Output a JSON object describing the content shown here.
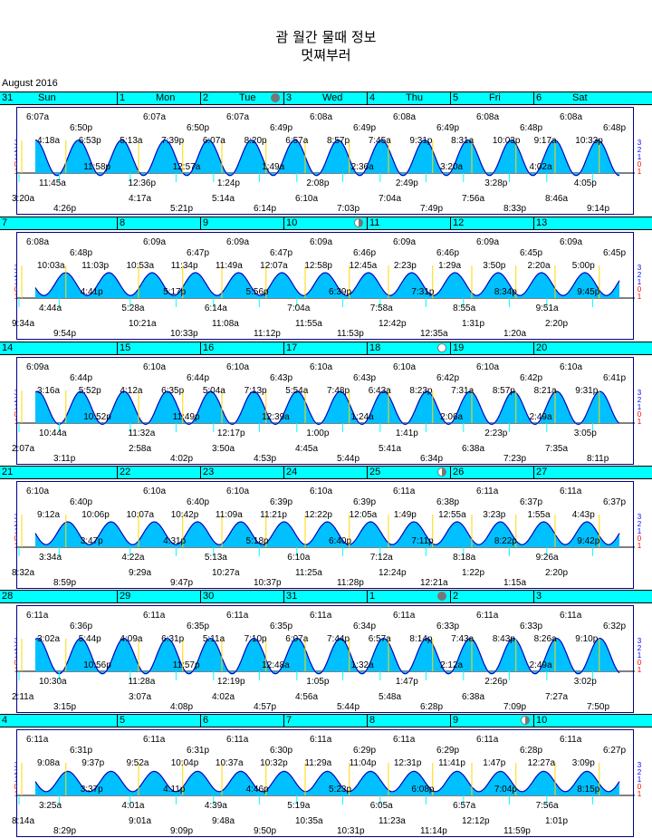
{
  "title": {
    "line1": "괌 월간 물때 정보",
    "line2": "멋쪄부러"
  },
  "month_label": "August 2016",
  "colors": {
    "header_bg": "#00ffff",
    "wave_fill": "#00c0ff",
    "wave_line": "#0000c0",
    "frame": "#00008b",
    "moonrise": "#ffd700",
    "moonset": "#00ffff"
  },
  "y_scale_labels": [
    "3",
    "2",
    "1",
    "0",
    "1"
  ],
  "weeks": [
    {
      "days": [
        {
          "num": "31",
          "name": "Sun",
          "moon": ""
        },
        {
          "num": "1",
          "name": "Mon",
          "moon": ""
        },
        {
          "num": "2",
          "name": "Tue",
          "moon": "new"
        },
        {
          "num": "3",
          "name": "Wed",
          "moon": ""
        },
        {
          "num": "4",
          "name": "Thu",
          "moon": ""
        },
        {
          "num": "5",
          "name": "Fri",
          "moon": ""
        },
        {
          "num": "6",
          "name": "Sat",
          "moon": ""
        }
      ],
      "sun": [
        [
          "6:07a",
          "6:50p"
        ],
        [
          "6:07a",
          "6:50p"
        ],
        [
          "6:07a",
          "6:49p"
        ],
        [
          "6:08a",
          "6:49p"
        ],
        [
          "6:08a",
          "6:49p"
        ],
        [
          "6:08a",
          "6:48p"
        ],
        [
          "6:08a",
          "6:48p"
        ]
      ],
      "highs": [
        "4:18a",
        "6:53p",
        "5:13a",
        "7:39p",
        "6:07a",
        "8:20p",
        "6:57a",
        "8:57p",
        "7:45a",
        "9:31p",
        "8:31a",
        "10:03p",
        "9:17a",
        "10:33p"
      ],
      "lows": [
        "11:45a",
        "11:58p",
        "12:36p",
        "12:57a",
        "1:24p",
        "1:49a",
        "2:08p",
        "2:36a",
        "2:49p",
        "3:20a",
        "3:28p",
        "4:02a",
        "4:05p"
      ],
      "moon": [
        [
          "3:20a",
          "4:26p"
        ],
        [
          "4:17a",
          "5:21p"
        ],
        [
          "5:14a",
          "6:14p"
        ],
        [
          "6:10a",
          "7:03p"
        ],
        [
          "7:04a",
          "7:49p"
        ],
        [
          "7:56a",
          "8:33p"
        ],
        [
          "8:46a",
          "9:14p"
        ]
      ],
      "tide_max": 2.6,
      "tide_min": -0.2,
      "phase": 0.25
    },
    {
      "days": [
        {
          "num": "7",
          "name": "",
          "moon": ""
        },
        {
          "num": "8",
          "name": "",
          "moon": ""
        },
        {
          "num": "9",
          "name": "",
          "moon": ""
        },
        {
          "num": "10",
          "name": "",
          "moon": "half"
        },
        {
          "num": "11",
          "name": "",
          "moon": ""
        },
        {
          "num": "12",
          "name": "",
          "moon": ""
        },
        {
          "num": "13",
          "name": "",
          "moon": ""
        }
      ],
      "sun": [
        [
          "6:08a",
          "6:48p"
        ],
        [
          "6:09a",
          "6:47p"
        ],
        [
          "6:09a",
          "6:47p"
        ],
        [
          "6:09a",
          "6:46p"
        ],
        [
          "6:09a",
          "6:46p"
        ],
        [
          "6:09a",
          "6:45p"
        ],
        [
          "6:09a",
          "6:45p"
        ]
      ],
      "highs": [
        "10:03a",
        "11:03p",
        "10:53a",
        "11:34p",
        "11:49a",
        "12:07a",
        "12:58p",
        "12:45a",
        "2:23p",
        "1:29a",
        "3:50p",
        "2:20a",
        "5:00p"
      ],
      "lows": [
        "4:44a",
        "4:41p",
        "5:28a",
        "5:17p",
        "6:14a",
        "5:56p",
        "7:04a",
        "6:39p",
        "7:58a",
        "7:31p",
        "8:55a",
        "8:34p",
        "9:51a",
        "9:45p"
      ],
      "moon": [
        [
          "9:34a",
          "9:54p"
        ],
        [
          "10:21a",
          "10:33p"
        ],
        [
          "11:08a",
          "11:12p"
        ],
        [
          "11:55a",
          "11:53p"
        ],
        [
          "12:42p",
          "12:35a"
        ],
        [
          "1:31p",
          "1:20a"
        ],
        [
          "2:20p",
          ""
        ]
      ],
      "tide_max": 2.0,
      "tide_min": 0.2,
      "phase": 0.55
    },
    {
      "days": [
        {
          "num": "14",
          "name": "",
          "moon": ""
        },
        {
          "num": "15",
          "name": "",
          "moon": ""
        },
        {
          "num": "16",
          "name": "",
          "moon": ""
        },
        {
          "num": "17",
          "name": "",
          "moon": ""
        },
        {
          "num": "18",
          "name": "",
          "moon": "full"
        },
        {
          "num": "19",
          "name": "",
          "moon": ""
        },
        {
          "num": "20",
          "name": "",
          "moon": ""
        }
      ],
      "sun": [
        [
          "6:09a",
          "6:44p"
        ],
        [
          "6:10a",
          "6:44p"
        ],
        [
          "6:10a",
          "6:43p"
        ],
        [
          "6:10a",
          "6:43p"
        ],
        [
          "6:10a",
          "6:42p"
        ],
        [
          "6:10a",
          "6:42p"
        ],
        [
          "6:10a",
          "6:41p"
        ]
      ],
      "highs": [
        "3:16a",
        "5:52p",
        "4:12a",
        "6:35p",
        "5:04a",
        "7:13p",
        "5:54a",
        "7:48p",
        "6:43a",
        "8:23p",
        "7:31a",
        "8:57p",
        "8:21a",
        "9:31p"
      ],
      "lows": [
        "10:44a",
        "10:52p",
        "11:32a",
        "11:49p",
        "12:17p",
        "12:39a",
        "1:00p",
        "1:24a",
        "1:41p",
        "2:06a",
        "2:23p",
        "2:49a",
        "3:05p"
      ],
      "moon": [
        [
          "2:07a",
          "3:11p"
        ],
        [
          "2:58a",
          "4:02p"
        ],
        [
          "3:50a",
          "4:53p"
        ],
        [
          "4:45a",
          "5:44p"
        ],
        [
          "5:41a",
          "6:34p"
        ],
        [
          "6:38a",
          "7:23p"
        ],
        [
          "7:35a",
          "8:11p"
        ]
      ],
      "tide_max": 2.5,
      "tide_min": -0.1,
      "phase": 0.2
    },
    {
      "days": [
        {
          "num": "21",
          "name": "",
          "moon": ""
        },
        {
          "num": "22",
          "name": "",
          "moon": ""
        },
        {
          "num": "23",
          "name": "",
          "moon": ""
        },
        {
          "num": "24",
          "name": "",
          "moon": ""
        },
        {
          "num": "25",
          "name": "",
          "moon": "half"
        },
        {
          "num": "26",
          "name": "",
          "moon": ""
        },
        {
          "num": "27",
          "name": "",
          "moon": ""
        }
      ],
      "sun": [
        [
          "6:10a",
          "6:40p"
        ],
        [
          "6:10a",
          "6:40p"
        ],
        [
          "6:10a",
          "6:39p"
        ],
        [
          "6:10a",
          "6:39p"
        ],
        [
          "6:11a",
          "6:38p"
        ],
        [
          "6:11a",
          "6:37p"
        ],
        [
          "6:11a",
          "6:37p"
        ]
      ],
      "highs": [
        "9:12a",
        "10:06p",
        "10:07a",
        "10:42p",
        "11:09a",
        "11:21p",
        "12:22p",
        "12:05a",
        "1:49p",
        "12:55a",
        "3:23p",
        "1:55a",
        "4:43p"
      ],
      "lows": [
        "3:34a",
        "3:47p",
        "4:22a",
        "4:31p",
        "5:13a",
        "5:18p",
        "6:10a",
        "6:40p",
        "7:12a",
        "7:11p",
        "8:18a",
        "8:22p",
        "9:26a",
        "9:42p"
      ],
      "moon": [
        [
          "8:32a",
          "8:59p"
        ],
        [
          "9:29a",
          "9:47p"
        ],
        [
          "10:27a",
          "10:37p"
        ],
        [
          "11:25a",
          "11:28p"
        ],
        [
          "12:24p",
          "12:21a"
        ],
        [
          "1:22p",
          "1:15a"
        ],
        [
          "2:20p",
          ""
        ]
      ],
      "tide_max": 2.0,
      "tide_min": 0.2,
      "phase": 0.5
    },
    {
      "days": [
        {
          "num": "28",
          "name": "",
          "moon": ""
        },
        {
          "num": "29",
          "name": "",
          "moon": ""
        },
        {
          "num": "30",
          "name": "",
          "moon": ""
        },
        {
          "num": "31",
          "name": "",
          "moon": ""
        },
        {
          "num": "1",
          "name": "",
          "moon": "new"
        },
        {
          "num": "2",
          "name": "",
          "moon": ""
        },
        {
          "num": "3",
          "name": "",
          "moon": ""
        }
      ],
      "sun": [
        [
          "6:11a",
          "6:36p"
        ],
        [
          "6:11a",
          "6:35p"
        ],
        [
          "6:11a",
          "6:35p"
        ],
        [
          "6:11a",
          "6:34p"
        ],
        [
          "6:11a",
          "6:33p"
        ],
        [
          "6:11a",
          "6:33p"
        ],
        [
          "6:11a",
          "6:32p"
        ]
      ],
      "highs": [
        "3:02a",
        "5:44p",
        "4:09a",
        "6:31p",
        "5:11a",
        "7:10p",
        "6:07a",
        "7:44p",
        "6:57a",
        "8:14p",
        "7:43a",
        "8:43p",
        "8:26a",
        "9:10p"
      ],
      "lows": [
        "10:30a",
        "10:56p",
        "11:28a",
        "11:57p",
        "12:19p",
        "12:48a",
        "1:05p",
        "1:32a",
        "1:47p",
        "2:12a",
        "2:26p",
        "2:49a",
        "3:02p"
      ],
      "moon": [
        [
          "2:11a",
          "3:15p"
        ],
        [
          "3:07a",
          "4:08p"
        ],
        [
          "4:02a",
          "4:57p"
        ],
        [
          "4:56a",
          "5:44p"
        ],
        [
          "5:48a",
          "6:28p"
        ],
        [
          "6:38a",
          "7:09p"
        ],
        [
          "7:27a",
          "7:50p"
        ]
      ],
      "tide_max": 2.6,
      "tide_min": -0.2,
      "phase": 0.2
    },
    {
      "days": [
        {
          "num": "4",
          "name": "",
          "moon": ""
        },
        {
          "num": "5",
          "name": "",
          "moon": ""
        },
        {
          "num": "6",
          "name": "",
          "moon": ""
        },
        {
          "num": "7",
          "name": "",
          "moon": ""
        },
        {
          "num": "8",
          "name": "",
          "moon": ""
        },
        {
          "num": "9",
          "name": "",
          "moon": "half"
        },
        {
          "num": "10",
          "name": "",
          "moon": ""
        }
      ],
      "sun": [
        [
          "6:11a",
          "6:31p"
        ],
        [
          "6:11a",
          "6:31p"
        ],
        [
          "6:11a",
          "6:30p"
        ],
        [
          "6:11a",
          "6:29p"
        ],
        [
          "6:11a",
          "6:29p"
        ],
        [
          "6:11a",
          "6:28p"
        ],
        [
          "6:11a",
          "6:27p"
        ]
      ],
      "highs": [
        "9:08a",
        "9:37p",
        "9:52a",
        "10:04p",
        "10:37a",
        "10:32p",
        "11:29a",
        "11:04p",
        "12:31p",
        "11:41p",
        "1:47p",
        "12:27a",
        "3:09p"
      ],
      "lows": [
        "3:25a",
        "3:37p",
        "4:01a",
        "4:11p",
        "4:39a",
        "4:46p",
        "5:19a",
        "5:23p",
        "6:05a",
        "6:08p",
        "6:57a",
        "7:04p",
        "7:56a",
        "8:15p"
      ],
      "moon": [
        [
          "8:14a",
          "8:29p"
        ],
        [
          "9:01a",
          "9:09p"
        ],
        [
          "9:48a",
          "9:50p"
        ],
        [
          "10:35a",
          "10:31p"
        ],
        [
          "11:23a",
          "11:14p"
        ],
        [
          "12:12p",
          "11:59p"
        ],
        [
          "1:01p",
          ""
        ]
      ],
      "tide_max": 1.9,
      "tide_min": 0.3,
      "phase": 0.5
    }
  ]
}
